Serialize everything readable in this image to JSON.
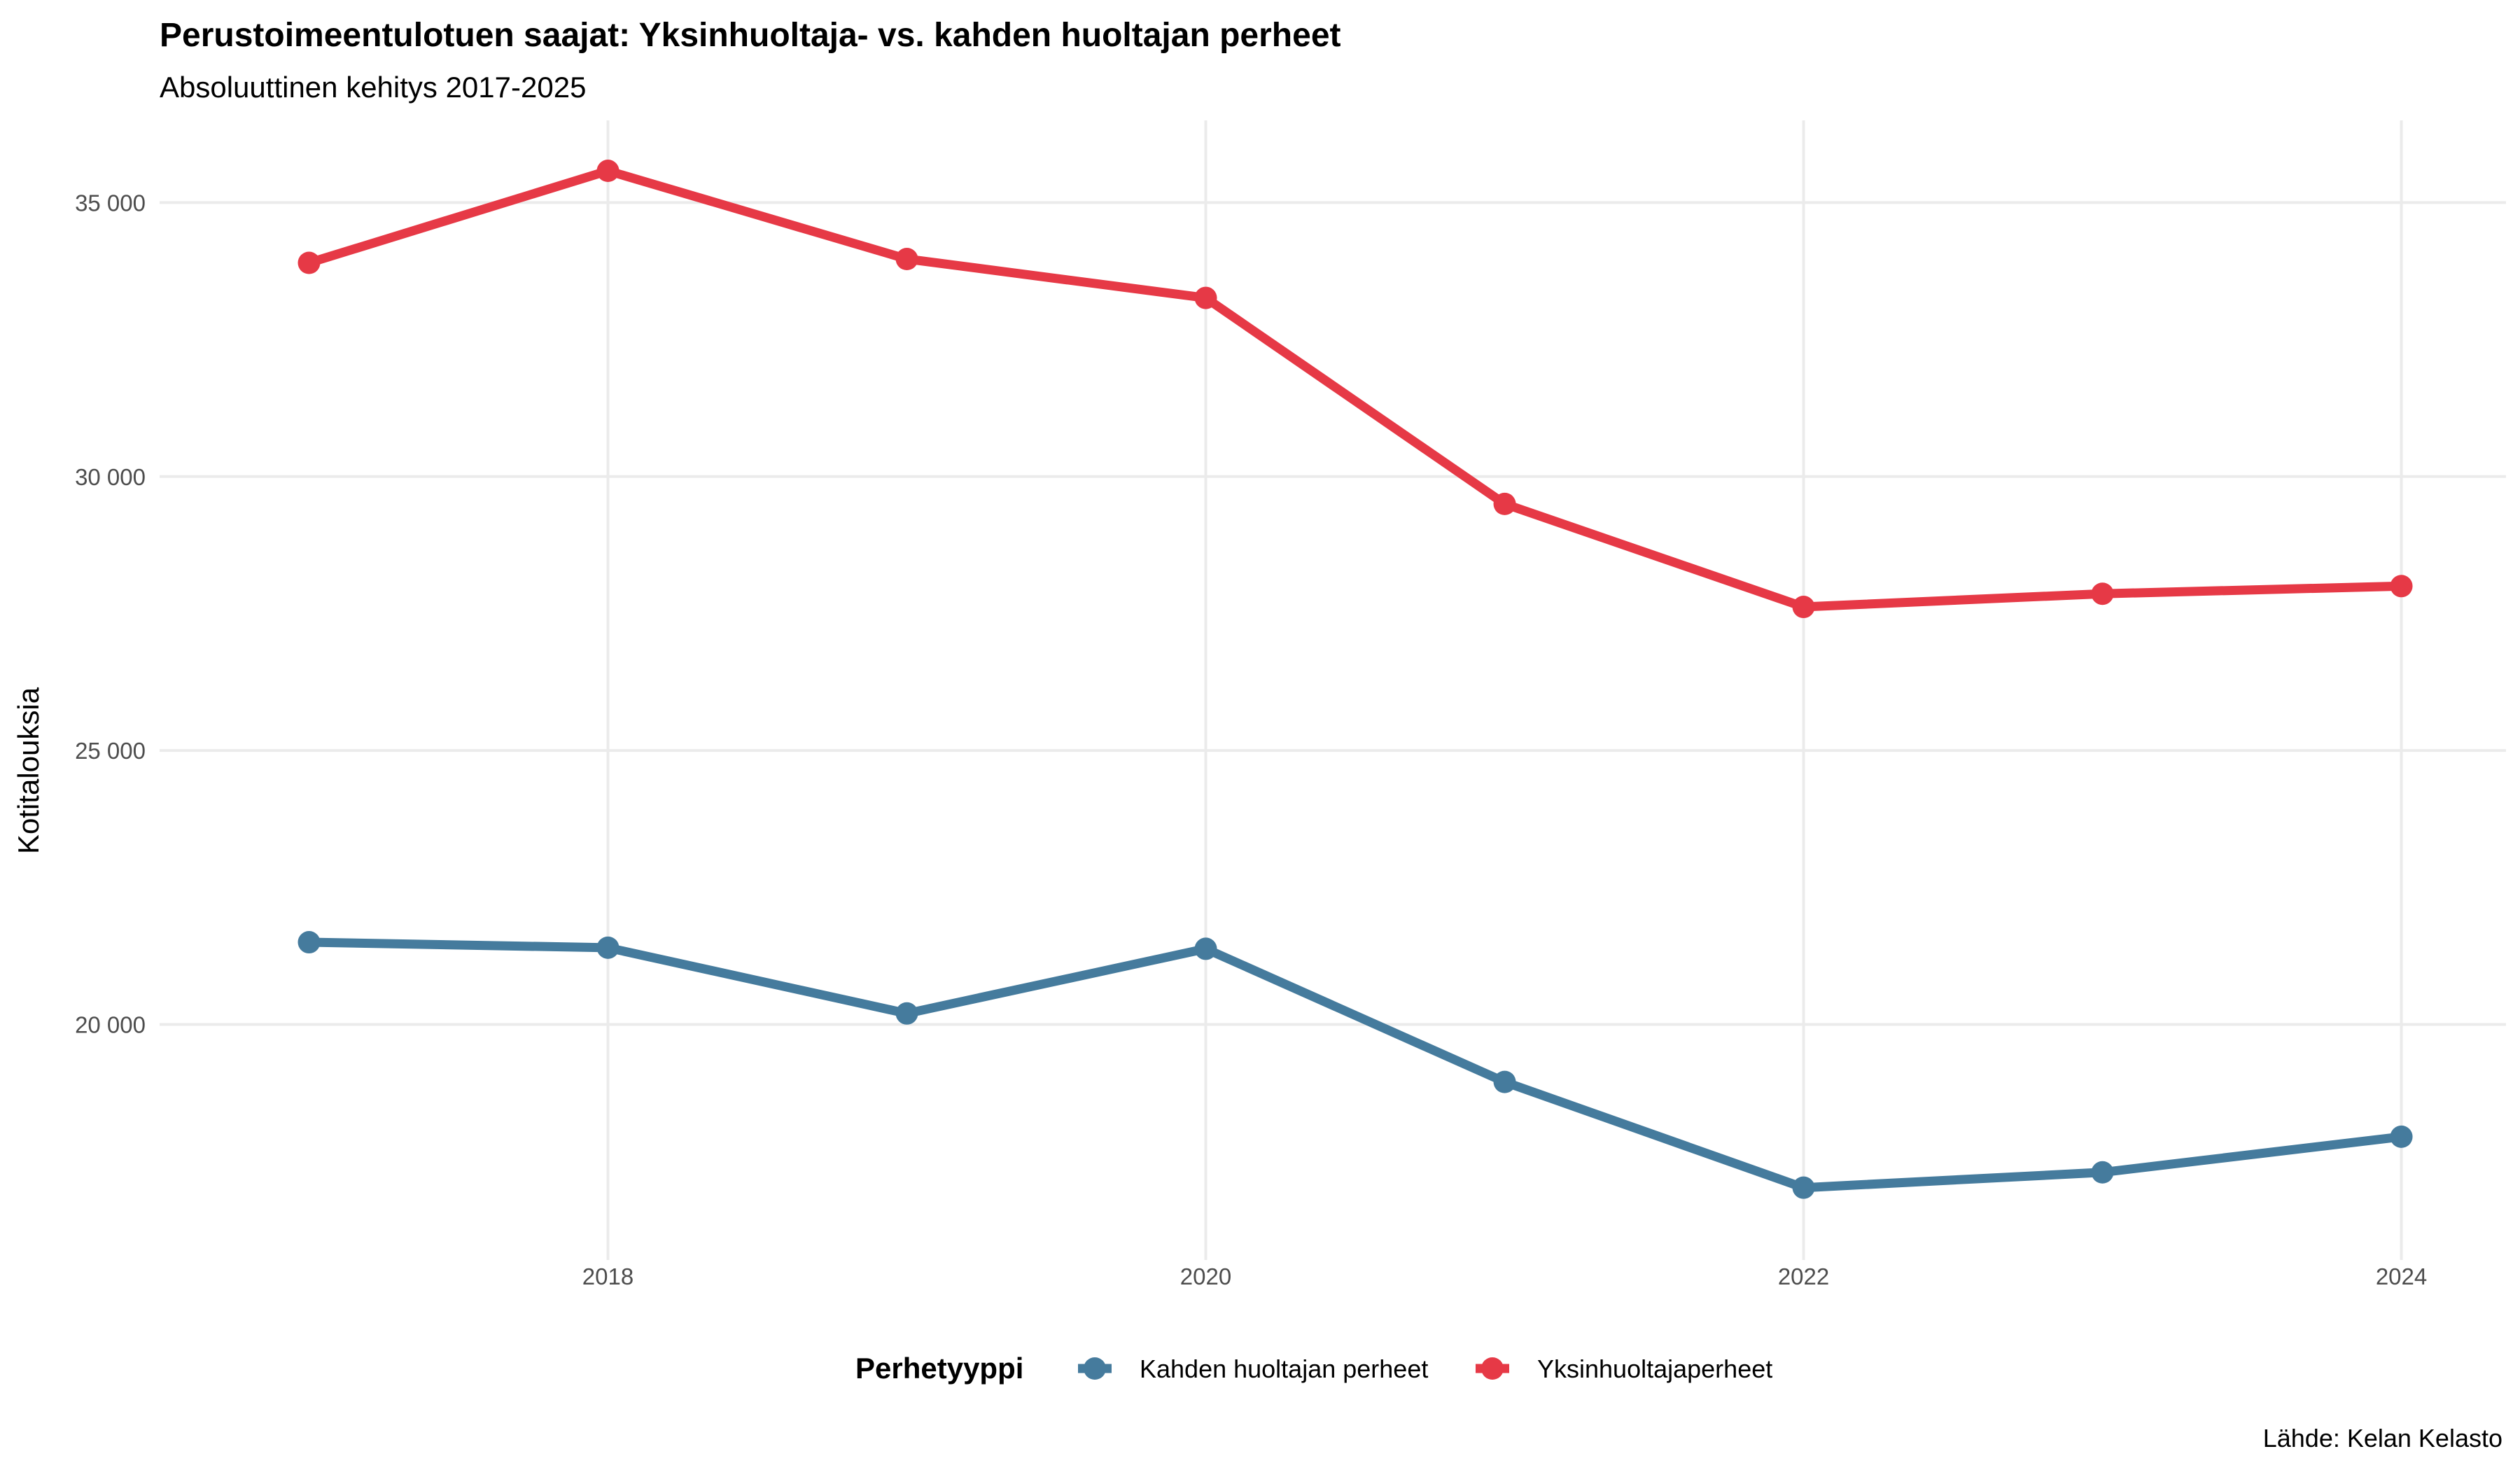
{
  "colors": {
    "kahden": "#457B9D",
    "yksin": "#E63946",
    "grid": "#EBEBEB",
    "tick_text": "#4D4D4D"
  },
  "chart_data": {
    "type": "line",
    "title": "Perustoimeentulotuen saajat: Yksinhuoltaja- vs. kahden huoltajan perheet",
    "subtitle": "Absoluuttinen kehitys 2017-2025",
    "xlabel": "",
    "ylabel": "Kotitalouksia",
    "caption": "Lähde: Kelan Kelasto",
    "x": [
      2017,
      2018,
      2019,
      2020,
      2021,
      2022,
      2023,
      2024
    ],
    "x_ticks": [
      2018,
      2020,
      2022,
      2024
    ],
    "x_tick_labels": [
      "2018",
      "2020",
      "2022",
      "2024"
    ],
    "xlim": [
      2016.5,
      2024.35
    ],
    "y_ticks": [
      20000,
      25000,
      30000,
      35000
    ],
    "y_tick_labels": [
      "20 000",
      "25 000",
      "30 000",
      "35 000"
    ],
    "ylim": [
      15700,
      36500
    ],
    "grid": true,
    "legend": {
      "title": "Perhetyyppi",
      "position": "bottom"
    },
    "series": [
      {
        "name": "Kahden huoltajan perheet",
        "color": "#457B9D",
        "values": [
          21500,
          21400,
          20200,
          21380,
          18950,
          17020,
          17300,
          17950
        ]
      },
      {
        "name": "Yksinhuoltajaperheet",
        "color": "#E63946",
        "values": [
          33900,
          35580,
          33970,
          33260,
          29500,
          27620,
          27860,
          28000
        ]
      }
    ]
  }
}
